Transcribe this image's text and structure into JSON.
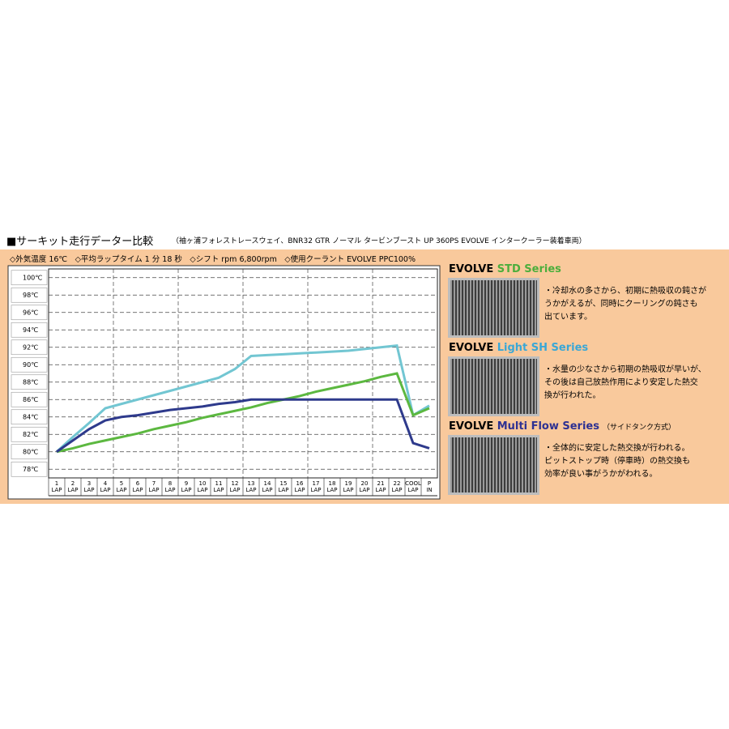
{
  "header": {
    "title": "■サーキット走行データー比較",
    "note": "（袖ヶ浦フォレストレースウェイ、BNR32 GTR ノーマル タービンブースト UP 360PS EVOLVE インタークーラー装着車両）",
    "conditions": "◇外気温度 16℃　◇平均ラップタイム 1 分 18 秒　◇シフト rpm 6,800rpm　◇使用クーラント EVOLVE PPC100%"
  },
  "chart_data": {
    "type": "line",
    "categories": [
      "1\nLAP",
      "2\nLAP",
      "3\nLAP",
      "4\nLAP",
      "5\nLAP",
      "6\nLAP",
      "7\nLAP",
      "8\nLAP",
      "9\nLAP",
      "10\nLAP",
      "11\nLAP",
      "12\nLAP",
      "13\nLAP",
      "14\nLAP",
      "15\nLAP",
      "16\nLAP",
      "17\nLAP",
      "18\nLAP",
      "19\nLAP",
      "20\nLAP",
      "21\nLAP",
      "22\nLAP",
      "COOL\nLAP",
      "P\nIN"
    ],
    "series": [
      {
        "color": "#72c6d2",
        "values": [
          80,
          81.7,
          83.3,
          85,
          85.5,
          86,
          86.5,
          87,
          87.5,
          88,
          88.5,
          89.5,
          91,
          91.1,
          91.2,
          91.3,
          91.4,
          91.5,
          91.6,
          91.8,
          92,
          92.2,
          84.2,
          85.3
        ]
      },
      {
        "color": "#5cb840",
        "values": [
          80,
          80.4,
          80.9,
          81.3,
          81.7,
          82.1,
          82.6,
          83,
          83.4,
          83.9,
          84.3,
          84.7,
          85.1,
          85.6,
          86,
          86.4,
          86.9,
          87.3,
          87.7,
          88.1,
          88.6,
          89,
          84.2,
          85
        ]
      },
      {
        "color": "#2e3a8c",
        "values": [
          80,
          81.3,
          82.6,
          83.6,
          84,
          84.2,
          84.5,
          84.8,
          85,
          85.2,
          85.5,
          85.7,
          86,
          86,
          86,
          86,
          86,
          86,
          86,
          86,
          86,
          86,
          81,
          80.4
        ]
      }
    ],
    "ylim": [
      77,
      101
    ],
    "yticks": [
      {
        "value": 78,
        "label": "78℃"
      },
      {
        "value": 80,
        "label": "80℃"
      },
      {
        "value": 82,
        "label": "82℃"
      },
      {
        "value": 84,
        "label": "84℃"
      },
      {
        "value": 86,
        "label": "86℃"
      },
      {
        "value": 88,
        "label": "88℃"
      },
      {
        "value": 90,
        "label": "90℃"
      },
      {
        "value": 92,
        "label": "92℃"
      },
      {
        "value": 94,
        "label": "94℃"
      },
      {
        "value": 96,
        "label": "96℃"
      },
      {
        "value": 98,
        "label": "98℃"
      },
      {
        "value": 100,
        "label": "100℃"
      }
    ],
    "grid": true
  },
  "panels": [
    {
      "brand": "EVOLVE",
      "series": "STD Series",
      "lines": [
        "・冷却水の多さから、初期に熱吸収の鈍さが",
        "うかがえるが、同時にクーリングの鈍さも",
        "出ています。"
      ]
    },
    {
      "brand": "EVOLVE",
      "series": "Light SH Series",
      "lines": [
        "・水量の少なさから初期の熱吸収が早いが、",
        "その後は自己放熱作用により安定した熱交",
        "換が行われた。"
      ]
    },
    {
      "brand": "EVOLVE",
      "series": "Multi Flow Series",
      "suffix": "（サイドタンク方式）",
      "lines": [
        "・全体的に安定した熱交換が行われる。",
        "ピットストップ時（停車時）の熱交換も",
        "効率が良い事がうかがわれる。"
      ]
    }
  ]
}
